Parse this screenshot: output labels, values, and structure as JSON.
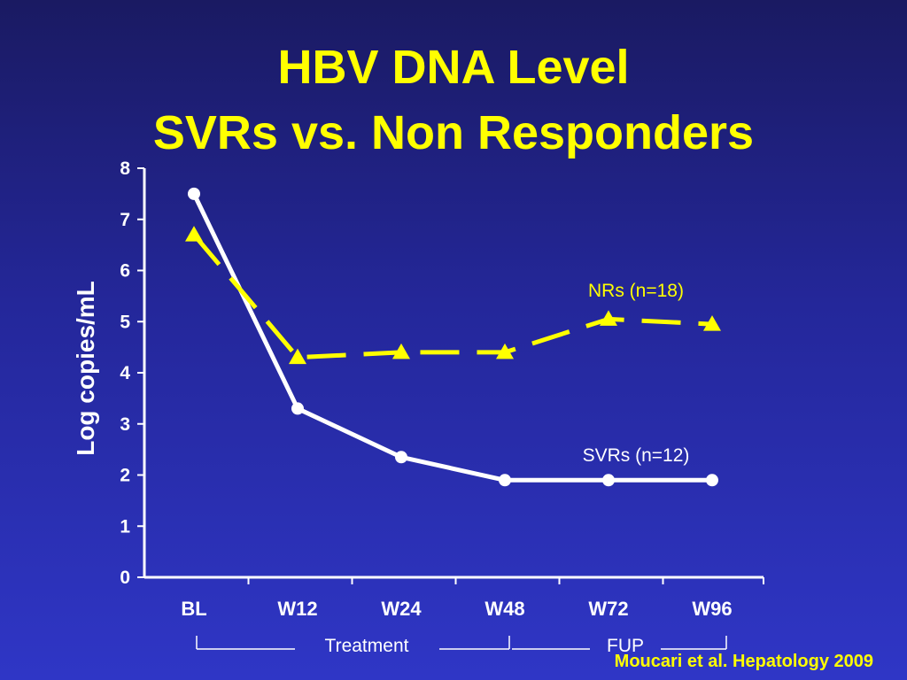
{
  "slide": {
    "title_line_1": "HBV DNA Level",
    "title_line_2": "SVRs vs. Non Responders",
    "citation": "Moucari et al. Hepatology 2009"
  },
  "chart_data": {
    "type": "line",
    "categories": [
      "BL",
      "W12",
      "W24",
      "W48",
      "W72",
      "W96"
    ],
    "ylabel": "Log copies/mL",
    "xlabel": "",
    "ylim": [
      0,
      8
    ],
    "yticks": [
      0,
      1,
      2,
      3,
      4,
      5,
      6,
      7,
      8
    ],
    "grid": false,
    "series": [
      {
        "name": "SVRs (n=12)",
        "values": [
          7.5,
          3.3,
          2.35,
          1.9,
          1.9,
          1.9
        ],
        "color": "#ffffff",
        "line_style": "solid",
        "marker": "circle"
      },
      {
        "name": "NRs (n=18)",
        "values": [
          6.7,
          4.3,
          4.4,
          4.4,
          5.05,
          4.95
        ],
        "color": "#ffff00",
        "line_style": "dashed",
        "marker": "triangle"
      }
    ],
    "period_labels": [
      {
        "label": "Treatment",
        "from": "BL",
        "to": "W48"
      },
      {
        "label": "FUP",
        "from": "W48",
        "to": "W96"
      }
    ]
  },
  "colors": {
    "title": "#ffff00",
    "axis": "#ffffff",
    "svr_series": "#ffffff",
    "nr_series": "#ffff00",
    "background_top": "#1a1a62",
    "background_bottom": "#2f36c6"
  }
}
